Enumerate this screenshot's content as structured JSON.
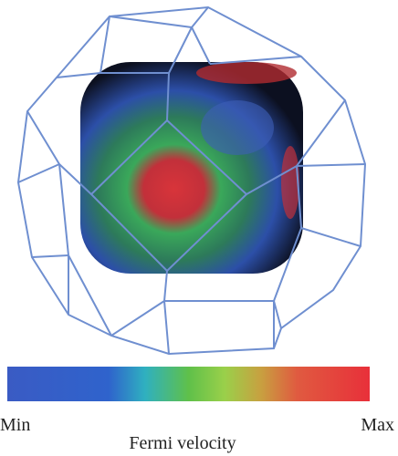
{
  "colorbar": {
    "min_label": "Min",
    "max_label": "Max",
    "label": "Fermi velocity"
  }
}
